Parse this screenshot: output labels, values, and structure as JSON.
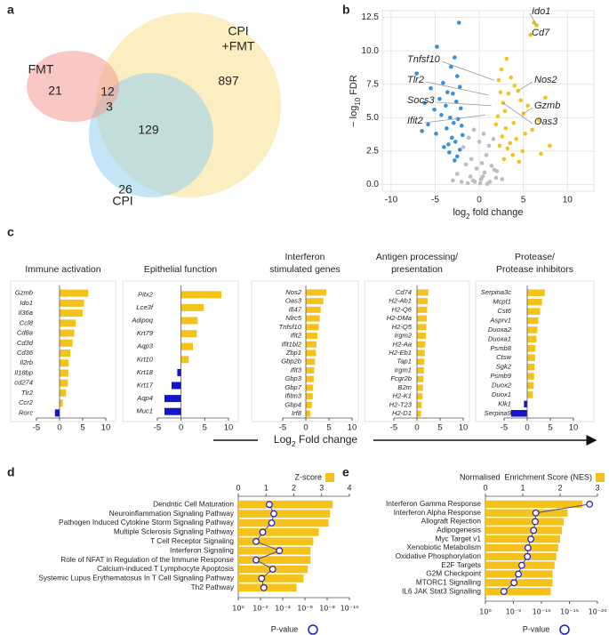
{
  "chart_data": [
    {
      "type": "venn",
      "panel": "a",
      "sets": [
        {
          "name": [
            "FMT"
          ],
          "color": "#f49a93"
        },
        {
          "name": [
            "CPI",
            "+FMT"
          ],
          "color": "#f7e08c"
        },
        {
          "name": [
            "CPI"
          ],
          "color": "#94d0ef"
        }
      ],
      "counts": [
        21,
        12,
        3,
        897,
        129,
        26
      ]
    },
    {
      "type": "scatter",
      "panel": "b",
      "xlabel": {
        "pre": "log",
        "sub": "2",
        "post": " fold change"
      },
      "ylabel": {
        "pre": "− log",
        "sub": "10",
        "post": " FDR"
      },
      "xlim": [
        -11,
        13
      ],
      "xticks": [
        -10,
        -5,
        0,
        5,
        10
      ],
      "ylim": [
        -0.5,
        13
      ],
      "yticks": [
        {
          "value": 0,
          "label": "0.0"
        },
        2.5,
        {
          "value": 5,
          "label": "5.0"
        },
        7.5,
        {
          "value": 10,
          "label": "10.0"
        },
        12.5
      ],
      "grid": true,
      "series": [
        {
          "color": "#bdbdbd",
          "x": [
            -1.8,
            -1.2,
            -0.6,
            0,
            0.5,
            1.1,
            1.6,
            -1.5,
            -0.9,
            -0.3,
            0.3,
            0.8,
            1.4,
            2.0,
            -2.5,
            -1.0,
            0.2,
            0.6,
            1.9,
            -0.5,
            0.1,
            -3.0,
            2.6,
            -1.3,
            1.2,
            0.9,
            -0.7,
            0.4,
            -2.0,
            1.7
          ],
          "y": [
            2.8,
            3.5,
            4.1,
            3.2,
            3.8,
            2.9,
            3.4,
            1.5,
            1.9,
            1.2,
            1.6,
            2.2,
            1.4,
            1.0,
            0.8,
            0.6,
            0.4,
            0.9,
            0.5,
            0.2,
            0.1,
            0.3,
            0.4,
            0.1,
            0.2,
            0.05,
            0.3,
            0.6,
            0.2,
            1.1
          ]
        },
        {
          "color": "#3b8fd6",
          "x": [
            -2.3,
            -4.8,
            -7.1,
            -3.2,
            -2.8,
            -5.5,
            -4.1,
            -3.6,
            -2.5,
            -6.2,
            -4.5,
            -3.0,
            -2.2,
            -5.1,
            -3.8,
            -2.6,
            -4.3,
            -3.3,
            -2.1,
            -5.8,
            -2.9,
            -3.7,
            -2.4,
            -4.9,
            -3.1,
            -2.0,
            -2.7,
            -3.5,
            -4.0,
            -2.2,
            -1.9,
            -2.5,
            -3.4,
            -6.5,
            -2.8
          ],
          "y": [
            12.1,
            10.3,
            8.3,
            8.8,
            9.5,
            7.2,
            7.6,
            6.9,
            8.1,
            6.1,
            6.4,
            6.8,
            7.3,
            5.6,
            5.9,
            6.2,
            5.2,
            5.0,
            5.7,
            4.5,
            4.6,
            4.2,
            4.9,
            3.8,
            3.5,
            4.4,
            3.2,
            3.0,
            2.8,
            2.6,
            3.7,
            2.1,
            2.4,
            4.0,
            1.8
          ]
        },
        {
          "color": "#f5c21b",
          "x": [
            6.2,
            6.5,
            5.8,
            3.1,
            4.4,
            2.5,
            5.0,
            2.7,
            3.6,
            7.5,
            4.0,
            2.2,
            3.3,
            5.5,
            6.8,
            2.9,
            4.7,
            3.9,
            2.4,
            8.0,
            3.0,
            5.2,
            2.1,
            4.2,
            3.5,
            6.0,
            2.6,
            4.9,
            1.9,
            3.2,
            2.3,
            7.0,
            3.8,
            2.8,
            4.5
          ],
          "y": [
            12.1,
            11.9,
            11.2,
            9.4,
            7.0,
            8.6,
            5.3,
            6.1,
            8.0,
            6.5,
            7.4,
            7.8,
            6.8,
            5.9,
            4.8,
            5.5,
            6.3,
            4.6,
            6.9,
            2.9,
            4.2,
            3.8,
            5.1,
            3.4,
            3.1,
            4.1,
            3.6,
            2.5,
            4.5,
            2.7,
            2.9,
            2.3,
            2.2,
            1.9,
            1.7
          ]
        }
      ],
      "annotations": [
        {
          "label": "Ido1",
          "x": 6.5,
          "y": 11.9
        },
        {
          "label": "Cd7",
          "x": 5.8,
          "y": 11.2
        },
        {
          "label": "Tnfsf10",
          "x": 1.7,
          "y": 7.8
        },
        {
          "label": "Tlr2",
          "x": 1.0,
          "y": 6.7
        },
        {
          "label": "Nos2",
          "x": 4.4,
          "y": 7.0
        },
        {
          "label": "Socs3",
          "x": 1.4,
          "y": 5.9
        },
        {
          "label": "Gzmb",
          "x": 5.0,
          "y": 5.3
        },
        {
          "label": "Ifit2",
          "x": 0.7,
          "y": 5.2
        },
        {
          "label": "Oas3",
          "x": 2.7,
          "y": 6.1
        }
      ]
    },
    {
      "type": "hbar",
      "panel": "c",
      "title": [
        "Immune activation"
      ],
      "categories": [
        "Gzmb",
        "Ido1",
        "Il36a",
        "Ccl8",
        "Cd8a",
        "Cd3d",
        "Cd36",
        "Il2rb",
        "Il18bp",
        "cd274",
        "Tlr2",
        "Ccr2",
        "Rorc"
      ],
      "values": [
        6.2,
        5.3,
        5.0,
        3.5,
        3.2,
        2.8,
        2.3,
        2.0,
        1.9,
        1.8,
        1.4,
        0.7,
        -1.0
      ],
      "pos_color": "#f5c21b",
      "neg_color": "#1414c8",
      "xlim": [
        -5,
        10
      ],
      "xticks": [
        -5,
        0,
        5,
        10
      ]
    },
    {
      "type": "hbar",
      "title": [
        "Epithelial function"
      ],
      "categories": [
        "Pitx2",
        "Lce3f",
        "Adipoq",
        "Krt79",
        "Aqp3",
        "Krt10",
        "Krt18",
        "Krt17",
        "Aqp4",
        "Muc1"
      ],
      "values": [
        8.5,
        4.8,
        3.5,
        3.3,
        2.5,
        1.6,
        -0.8,
        -2.0,
        -3.5,
        -3.5
      ],
      "pos_color": "#f5c21b",
      "neg_color": "#1414c8",
      "xlim": [
        -5,
        10
      ],
      "xticks": [
        -5,
        0,
        5,
        10
      ]
    },
    {
      "type": "hbar",
      "title": [
        "Interferon",
        "stimulated genes"
      ],
      "categories": [
        "Nos2",
        "Oas3",
        "Ifi47",
        "Nlrc5",
        "Tnfsf10",
        "Ifit2",
        "Ifit1bl2",
        "Zbp1",
        "Gbp2b",
        "Ifit3",
        "Gbp3",
        "Gbp7",
        "Ifitm3",
        "Gbp4",
        "Irf8"
      ],
      "values": [
        4.4,
        3.8,
        3.2,
        3.0,
        2.8,
        2.5,
        2.3,
        2.2,
        2.0,
        1.8,
        1.7,
        1.6,
        1.5,
        1.3,
        1.0
      ],
      "pos_color": "#f5c21b",
      "neg_color": "#1414c8",
      "xlim": [
        -5,
        10
      ],
      "xticks": [
        -5,
        0,
        5,
        10
      ]
    },
    {
      "type": "hbar",
      "title": [
        "Antigen processing/",
        "presentation"
      ],
      "categories": [
        "Cd74",
        "H2-Ab1",
        "H2-Q6",
        "H2-DMa",
        "H2-Q5",
        "Irgm2",
        "H2-Aa",
        "H2-Eb1",
        "Tap1",
        "Irgm1",
        "Fcgr2b",
        "B2m",
        "H2-K1",
        "H2-T23",
        "H2-D1"
      ],
      "values": [
        2.5,
        2.3,
        2.2,
        2.1,
        2.0,
        1.9,
        1.8,
        1.7,
        1.6,
        1.5,
        1.4,
        1.3,
        1.2,
        1.0,
        0.9
      ],
      "pos_color": "#f5c21b",
      "neg_color": "#1414c8",
      "xlim": [
        -5,
        10
      ],
      "xticks": [
        -5,
        0,
        5,
        10
      ]
    },
    {
      "type": "hbar",
      "title": [
        "Protease/",
        "Protease inhibitors"
      ],
      "categories": [
        "Serpina3c",
        "Mcpt1",
        "Cst6",
        "Asprv1",
        "Duoxa2",
        "Duoxa1",
        "Psmb8",
        "Ctsw",
        "Sgk2",
        "Psmb9",
        "Duox2",
        "Duox1",
        "Klk1",
        "Serpina9"
      ],
      "values": [
        3.8,
        3.2,
        2.8,
        2.4,
        2.2,
        2.0,
        1.8,
        1.7,
        1.6,
        1.5,
        1.4,
        1.2,
        -0.7,
        -3.5
      ],
      "pos_color": "#f5c21b",
      "neg_color": "#1414c8",
      "xlim": [
        -5,
        10
      ],
      "xticks": [
        -5,
        0,
        5,
        10
      ]
    },
    {
      "type": "bar_dot",
      "panel": "d",
      "categories": [
        "Dendritic Cell Maturation",
        "Neuroinflammation Signaling Pathway",
        "Pathogen Induced Cytokine Storm Signaling Pathway",
        "Multiple Sclerosis Signaling Pathway",
        "T Cell Receptor Signaling",
        "Interferon Signaling",
        "Role of NFAT in Regulation of the Immune Response",
        "Calcium-induced T Lymphocyte Apoptosis",
        "Systemic Lupus Erythematosus In T Cell Signaling Pathway",
        "Th2 Pathway"
      ],
      "series": [
        {
          "name": "Z-score",
          "color": "#f5c21b",
          "values": [
            3.4,
            3.3,
            3.25,
            2.9,
            2.7,
            2.6,
            2.6,
            2.5,
            2.35,
            2.1
          ]
        },
        {
          "name": "P-value",
          "color": "#1a1ad0",
          "axis": "x2",
          "values": [
            0.0016,
            0.00063,
            0.001,
            0.0063,
            0.025,
            0.0002,
            0.025,
            0.0008,
            0.0079,
            0.005
          ]
        }
      ],
      "xlim": [
        0,
        4
      ],
      "xticks": [
        0,
        1,
        2,
        3,
        4
      ],
      "x2lim": [
        1,
        1e-10
      ],
      "x2log": true,
      "x2ticks": [
        {
          "value": 1,
          "label": "10⁰"
        },
        {
          "value": 0.01,
          "label": "10⁻²"
        },
        {
          "value": 0.0001,
          "label": "10⁻⁴"
        },
        {
          "value": 1e-06,
          "label": "10⁻⁶"
        },
        {
          "value": 1e-08,
          "label": "10⁻⁸"
        },
        {
          "value": 1e-10,
          "label": "10⁻¹⁰"
        }
      ]
    },
    {
      "type": "bar_dot",
      "panel": "e",
      "categories": [
        "Interferon Gamma Response",
        "Interferon Alpha Response",
        "Allograft Rejection",
        "Adipogenesis",
        "Myc Target v1",
        "Xenobiotic Metabolism",
        "Oxidative Phosphorylation",
        "E2F Targets",
        "G2M Checkpoint",
        "MTORC1 Signalling",
        "IL6 JAK Stat3 Signalling"
      ],
      "series": [
        {
          "name": "Normalised  Enrichment Score (NES)",
          "color": "#f5c21b",
          "values": [
            2.6,
            2.2,
            2.1,
            2.05,
            2.0,
            1.95,
            1.9,
            1.85,
            1.8,
            1.8,
            1.75
          ]
        },
        {
          "name": "P-value",
          "color": "#1a1ad0",
          "axis": "x2",
          "values": [
            2.5e-19,
            1e-09,
            1.3e-09,
            2.5e-09,
            7.9e-09,
            2.5e-08,
            3.2e-08,
            3.2e-07,
            1.3e-06,
            7.9e-06,
            0.0005
          ]
        }
      ],
      "xlim": [
        0,
        3
      ],
      "xticks": [
        0,
        1,
        2,
        3
      ],
      "x2lim": [
        1,
        1e-20
      ],
      "x2log": true,
      "x2ticks": [
        {
          "value": 1,
          "label": "10⁰"
        },
        {
          "value": 1e-05,
          "label": "10⁻⁵"
        },
        {
          "value": 1e-10,
          "label": "10⁻¹⁰"
        },
        {
          "value": 1e-15,
          "label": "10⁻¹⁵"
        },
        {
          "value": 1e-20,
          "label": "10⁻²⁰"
        }
      ]
    }
  ],
  "panel_c_axis": {
    "pre": "Log",
    "sub": "2",
    "post": " Fold change"
  }
}
